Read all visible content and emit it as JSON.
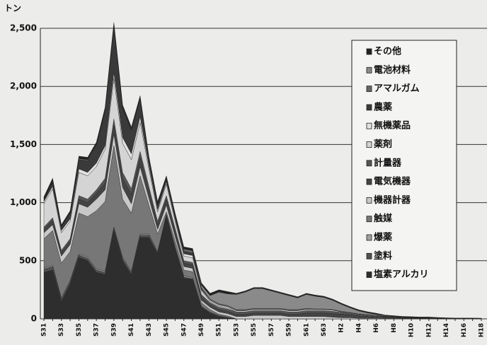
{
  "chart_data": {
    "type": "stacked_area",
    "y_label": "トン",
    "categories": [
      "S31",
      null,
      "S33",
      null,
      "S35",
      null,
      "S37",
      null,
      "S39",
      null,
      "S41",
      null,
      "S43",
      null,
      "S45",
      null,
      "S47",
      null,
      "S49",
      null,
      "S51",
      null,
      "S53",
      null,
      "S55",
      null,
      "S57",
      null,
      "S59",
      null,
      "S61",
      null,
      "S63",
      null,
      "H2",
      null,
      "H4",
      null,
      "H6",
      null,
      "H8",
      null,
      "H10",
      null,
      "H12",
      null,
      "H14",
      null,
      "H16",
      null,
      "H18"
    ],
    "ylim": [
      0,
      2500
    ],
    "yticks": [
      0,
      500,
      {
        "value": 1000,
        "label": "1,000"
      },
      {
        "value": 1500,
        "label": "1,500"
      },
      {
        "value": 2000,
        "label": "2,000"
      },
      {
        "value": 2500,
        "label": "2,500"
      }
    ],
    "grid": true,
    "series": [
      {
        "name": "その他",
        "color": "#222222",
        "values": [
          30,
          30,
          20,
          20,
          20,
          20,
          20,
          20,
          20,
          20,
          20,
          20,
          20,
          20,
          20,
          20,
          20,
          20,
          20,
          20,
          20,
          20,
          10,
          10,
          10,
          10,
          10,
          10,
          10,
          10,
          10,
          10,
          10,
          10,
          10,
          10,
          10,
          10,
          10,
          5,
          5,
          5,
          5,
          5,
          5,
          3,
          3,
          3,
          3,
          3,
          3
        ]
      },
      {
        "name": "電池材料",
        "color": "#8a8a8a",
        "values": [
          0,
          0,
          0,
          0,
          0,
          0,
          0,
          0,
          0,
          0,
          0,
          0,
          0,
          0,
          0,
          0,
          10,
          10,
          20,
          30,
          100,
          100,
          130,
          150,
          170,
          170,
          150,
          130,
          120,
          100,
          120,
          110,
          100,
          80,
          60,
          40,
          25,
          15,
          8,
          5,
          3,
          2,
          1,
          1,
          1,
          1,
          0,
          0,
          0,
          0,
          0
        ]
      },
      {
        "name": "アマルガム",
        "color": "#666666",
        "values": [
          10,
          10,
          10,
          10,
          10,
          10,
          10,
          10,
          10,
          10,
          10,
          10,
          10,
          10,
          10,
          10,
          10,
          10,
          10,
          10,
          10,
          10,
          10,
          10,
          10,
          10,
          10,
          10,
          10,
          10,
          10,
          5,
          5,
          5,
          5,
          5,
          3,
          3,
          2,
          2,
          1,
          1,
          1,
          1,
          1,
          0,
          0,
          0,
          0,
          0,
          0
        ]
      },
      {
        "name": "農薬",
        "color": "#3a3a3a",
        "values": [
          0,
          30,
          20,
          40,
          80,
          100,
          150,
          300,
          400,
          250,
          200,
          150,
          50,
          40,
          20,
          20,
          20,
          20,
          10,
          0,
          0,
          0,
          0,
          0,
          0,
          0,
          0,
          0,
          0,
          0,
          0,
          0,
          0,
          0,
          0,
          0,
          0,
          0,
          0,
          0,
          0,
          0,
          0,
          0,
          0,
          0,
          0,
          0,
          0,
          0,
          0
        ]
      },
      {
        "name": "無機薬品",
        "color": "#e2e2e2",
        "values": [
          20,
          20,
          20,
          20,
          30,
          30,
          30,
          30,
          50,
          50,
          50,
          50,
          30,
          20,
          20,
          20,
          20,
          20,
          10,
          10,
          10,
          10,
          10,
          10,
          10,
          10,
          10,
          10,
          10,
          10,
          10,
          10,
          10,
          10,
          5,
          5,
          5,
          5,
          5,
          3,
          3,
          2,
          2,
          1,
          1,
          1,
          0,
          0,
          0,
          0,
          0
        ]
      },
      {
        "name": "薬剤",
        "color": "#d4d4d4",
        "values": [
          200,
          250,
          150,
          150,
          200,
          200,
          200,
          250,
          350,
          250,
          250,
          250,
          150,
          80,
          100,
          60,
          40,
          40,
          30,
          10,
          10,
          10,
          0,
          0,
          0,
          0,
          0,
          0,
          0,
          0,
          0,
          0,
          0,
          0,
          0,
          0,
          0,
          0,
          0,
          0,
          0,
          0,
          0,
          0,
          0,
          0,
          0,
          0,
          0,
          0,
          0
        ]
      },
      {
        "name": "計量器",
        "color": "#555555",
        "values": [
          20,
          20,
          20,
          20,
          30,
          30,
          30,
          40,
          50,
          50,
          50,
          50,
          40,
          30,
          30,
          30,
          20,
          20,
          20,
          20,
          20,
          20,
          20,
          20,
          20,
          20,
          20,
          20,
          20,
          20,
          20,
          20,
          20,
          20,
          15,
          10,
          10,
          8,
          6,
          5,
          4,
          3,
          3,
          2,
          2,
          2,
          2,
          1,
          1,
          1,
          1
        ]
      },
      {
        "name": "電気機器",
        "color": "#444444",
        "values": [
          30,
          40,
          30,
          30,
          40,
          40,
          50,
          60,
          80,
          80,
          80,
          80,
          60,
          40,
          50,
          40,
          30,
          30,
          30,
          20,
          20,
          20,
          20,
          20,
          20,
          20,
          20,
          20,
          20,
          20,
          30,
          30,
          30,
          30,
          30,
          25,
          20,
          15,
          12,
          10,
          8,
          6,
          5,
          4,
          4,
          3,
          3,
          2,
          2,
          2,
          1
        ]
      },
      {
        "name": "機器計器",
        "color": "#c8c8c8",
        "values": [
          50,
          50,
          60,
          60,
          80,
          80,
          100,
          100,
          100,
          100,
          80,
          80,
          60,
          40,
          60,
          40,
          30,
          30,
          20,
          20,
          20,
          20,
          20,
          20,
          30,
          30,
          30,
          30,
          20,
          20,
          20,
          20,
          20,
          15,
          10,
          10,
          5,
          5,
          5,
          3,
          3,
          2,
          2,
          2,
          2,
          2,
          1,
          1,
          1,
          1,
          1
        ]
      },
      {
        "name": "触媒",
        "color": "#777777",
        "values": [
          250,
          300,
          300,
          250,
          350,
          350,
          500,
          600,
          700,
          500,
          500,
          500,
          250,
          150,
          20,
          50,
          50,
          50,
          30,
          20,
          10,
          10,
          0,
          0,
          0,
          0,
          0,
          0,
          0,
          0,
          0,
          0,
          0,
          0,
          0,
          0,
          0,
          0,
          0,
          0,
          0,
          0,
          0,
          0,
          0,
          0,
          0,
          0,
          0,
          0,
          0
        ]
      },
      {
        "name": "爆薬",
        "color": "#a0a0a0",
        "values": [
          10,
          10,
          10,
          10,
          10,
          10,
          10,
          10,
          10,
          10,
          10,
          10,
          10,
          10,
          10,
          10,
          10,
          10,
          5,
          5,
          5,
          5,
          0,
          0,
          0,
          0,
          0,
          0,
          0,
          0,
          0,
          0,
          0,
          0,
          0,
          0,
          0,
          0,
          0,
          0,
          0,
          0,
          0,
          0,
          0,
          0,
          0,
          0,
          0,
          0,
          0
        ]
      },
      {
        "name": "塗料",
        "color": "#505050",
        "values": [
          30,
          30,
          20,
          20,
          20,
          20,
          20,
          20,
          20,
          20,
          20,
          20,
          20,
          10,
          10,
          10,
          10,
          5,
          5,
          5,
          5,
          0,
          0,
          0,
          0,
          0,
          0,
          0,
          0,
          0,
          0,
          0,
          0,
          0,
          0,
          0,
          0,
          0,
          0,
          0,
          0,
          0,
          0,
          0,
          0,
          0,
          0,
          0,
          0,
          0,
          0
        ]
      },
      {
        "name": "塩素アルカリ",
        "color": "#2e2e2e",
        "values": [
          400,
          420,
          150,
          300,
          530,
          500,
          400,
          380,
          760,
          500,
          380,
          700,
          700,
          560,
          880,
          600,
          350,
          340,
          100,
          50,
          20,
          10,
          0,
          0,
          0,
          0,
          0,
          0,
          0,
          0,
          0,
          0,
          0,
          0,
          0,
          0,
          0,
          0,
          0,
          0,
          0,
          0,
          0,
          0,
          0,
          0,
          0,
          0,
          0,
          0,
          0
        ]
      }
    ]
  }
}
